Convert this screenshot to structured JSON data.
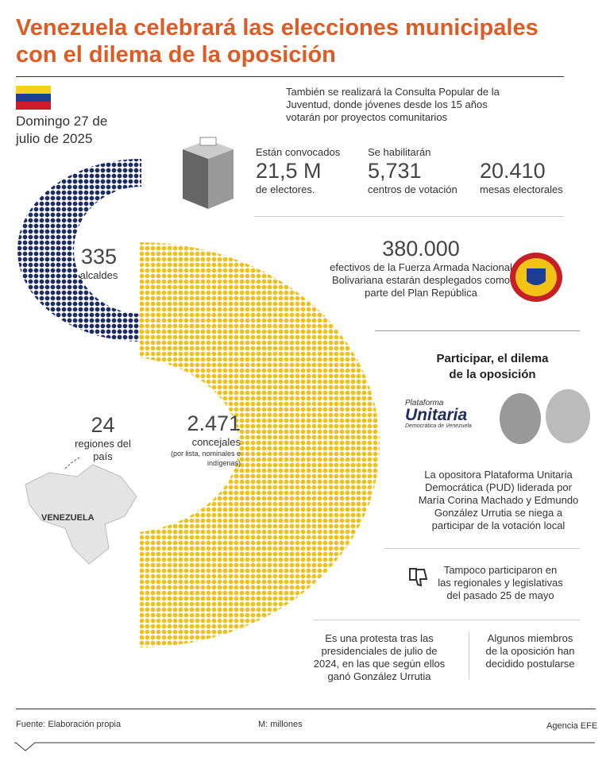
{
  "header": {
    "title": "Venezuela celebrará las elecciones municipales con el dilema de la oposición"
  },
  "date": "Domingo 27 de julio de 2025",
  "intro": "También se realizará la Consulta Popular de la Juventud, donde jóvenes desde los 15 años votarán por proyectos comunitarios",
  "stats": [
    {
      "pre": "Están convocados",
      "value": "21,5 M",
      "post": "de electores."
    },
    {
      "pre": "Se habilitarán",
      "value": "5,731",
      "post": "centros de votación"
    },
    {
      "value": "20.410",
      "post": "mesas electorales"
    }
  ],
  "military": {
    "value": "380.000",
    "text": "efectivos de la Fuerza Armada Nacional Bolivariana estarán desplegados como parte del Plan República"
  },
  "alcaldes": {
    "value": "335",
    "label": "alcaldes"
  },
  "regions": {
    "value": "24",
    "label": "regiones del país"
  },
  "concejales": {
    "value": "2.471",
    "label": "concejales",
    "note": "(por lista, nominales e indígenas)"
  },
  "map_label": "VENEZUELA",
  "opposition": {
    "title": "Participar, el dilema de la oposición",
    "logo": {
      "top": "Plataforma",
      "main": "Unitaria",
      "bottom": "Democrática de Venezuela"
    },
    "p1": "La opositora Plataforma Unitaria Democrática (PUD) liderada por María Corina Machado y Edmundo González Urrutia se niega a participar de la votación local",
    "p2": "Tampoco participaron en las regionales y legislativas del pasado 25 de mayo",
    "p3": "Es una protesta tras las presidenciales de julio de 2024, en las que según ellos ganó González Urrutia",
    "p4": "Algunos miembros de la oposición han decidido postularse"
  },
  "footer": {
    "source": "Fuente: Elaboración propia",
    "note": "M: millones",
    "credit": "Agencia EFE"
  }
}
